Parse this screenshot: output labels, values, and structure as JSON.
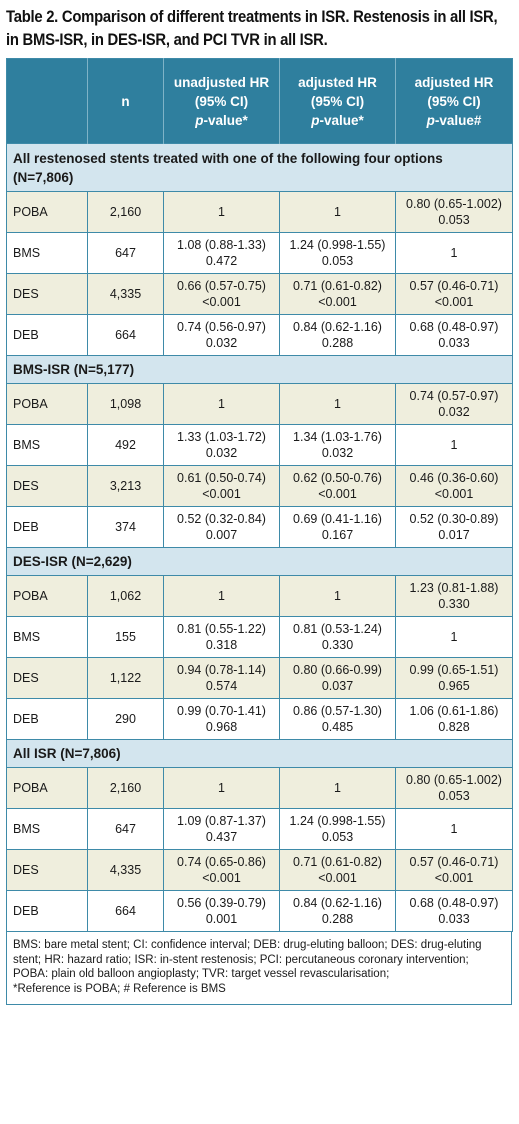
{
  "caption": "Table 2. Comparison of different treatments in ISR. Restenosis in all ISR, in BMS-ISR, in DES-ISR, and PCI TVR in all ISR.",
  "header": {
    "col0": "",
    "col1": "n",
    "col2": {
      "line1": "unadjusted HR",
      "line2": "(95% CI)",
      "pv": "p",
      "rest": "-value*"
    },
    "col3": {
      "line1": "adjusted HR",
      "line2": "(95% CI)",
      "pv": "p",
      "rest": "-value*"
    },
    "col4": {
      "line1": "adjusted HR",
      "line2": "(95% CI)",
      "pv": "p",
      "rest": "-value#"
    }
  },
  "sections": [
    {
      "title": "All restenosed stents treated with one of the following four options (N=7,806)",
      "rows": [
        {
          "label": "POBA",
          "n": "2,160",
          "c2a": "1",
          "c2b": "",
          "c3a": "1",
          "c3b": "",
          "c4a": "0.80 (0.65-1.002)",
          "c4b": "0.053"
        },
        {
          "label": "BMS",
          "n": "647",
          "c2a": "1.08 (0.88-1.33)",
          "c2b": "0.472",
          "c3a": "1.24 (0.998-1.55)",
          "c3b": "0.053",
          "c4a": "1",
          "c4b": ""
        },
        {
          "label": "DES",
          "n": "4,335",
          "c2a": "0.66 (0.57-0.75)",
          "c2b": "<0.001",
          "c3a": "0.71 (0.61-0.82)",
          "c3b": "<0.001",
          "c4a": "0.57 (0.46-0.71)",
          "c4b": "<0.001"
        },
        {
          "label": "DEB",
          "n": "664",
          "c2a": "0.74 (0.56-0.97)",
          "c2b": "0.032",
          "c3a": "0.84 (0.62-1.16)",
          "c3b": "0.288",
          "c4a": "0.68 (0.48-0.97)",
          "c4b": "0.033"
        }
      ]
    },
    {
      "title": "BMS-ISR (N=5,177)",
      "rows": [
        {
          "label": "POBA",
          "n": "1,098",
          "c2a": "1",
          "c2b": "",
          "c3a": "1",
          "c3b": "",
          "c4a": "0.74 (0.57-0.97)",
          "c4b": "0.032"
        },
        {
          "label": "BMS",
          "n": "492",
          "c2a": "1.33 (1.03-1.72)",
          "c2b": "0.032",
          "c3a": "1.34 (1.03-1.76)",
          "c3b": "0.032",
          "c4a": "1",
          "c4b": ""
        },
        {
          "label": "DES",
          "n": "3,213",
          "c2a": "0.61 (0.50-0.74)",
          "c2b": "<0.001",
          "c3a": "0.62 (0.50-0.76)",
          "c3b": "<0.001",
          "c4a": "0.46 (0.36-0.60)",
          "c4b": "<0.001"
        },
        {
          "label": "DEB",
          "n": "374",
          "c2a": "0.52 (0.32-0.84)",
          "c2b": "0.007",
          "c3a": "0.69 (0.41-1.16)",
          "c3b": "0.167",
          "c4a": "0.52 (0.30-0.89)",
          "c4b": "0.017"
        }
      ]
    },
    {
      "title": "DES-ISR (N=2,629)",
      "rows": [
        {
          "label": "POBA",
          "n": "1,062",
          "c2a": "1",
          "c2b": "",
          "c3a": "1",
          "c3b": "",
          "c4a": "1.23 (0.81-1.88)",
          "c4b": "0.330"
        },
        {
          "label": "BMS",
          "n": "155",
          "c2a": "0.81 (0.55-1.22)",
          "c2b": "0.318",
          "c3a": "0.81 (0.53-1.24)",
          "c3b": "0.330",
          "c4a": "1",
          "c4b": ""
        },
        {
          "label": "DES",
          "n": "1,122",
          "c2a": "0.94 (0.78-1.14)",
          "c2b": "0.574",
          "c3a": "0.80 (0.66-0.99)",
          "c3b": "0.037",
          "c4a": "0.99 (0.65-1.51)",
          "c4b": "0.965"
        },
        {
          "label": "DEB",
          "n": "290",
          "c2a": "0.99 (0.70-1.41)",
          "c2b": "0.968",
          "c3a": "0.86 (0.57-1.30)",
          "c3b": "0.485",
          "c4a": "1.06 (0.61-1.86)",
          "c4b": "0.828"
        }
      ]
    },
    {
      "title": "All ISR (N=7,806)",
      "rows": [
        {
          "label": "POBA",
          "n": "2,160",
          "c2a": "1",
          "c2b": "",
          "c3a": "1",
          "c3b": "",
          "c4a": "0.80 (0.65-1.002)",
          "c4b": "0.053"
        },
        {
          "label": "BMS",
          "n": "647",
          "c2a": "1.09 (0.87-1.37)",
          "c2b": "0.437",
          "c3a": "1.24 (0.998-1.55)",
          "c3b": "0.053",
          "c4a": "1",
          "c4b": ""
        },
        {
          "label": "DES",
          "n": "4,335",
          "c2a": "0.74 (0.65-0.86)",
          "c2b": "<0.001",
          "c3a": "0.71 (0.61-0.82)",
          "c3b": "<0.001",
          "c4a": "0.57 (0.46-0.71)",
          "c4b": "<0.001"
        },
        {
          "label": "DEB",
          "n": "664",
          "c2a": "0.56 (0.39-0.79)",
          "c2b": "0.001",
          "c3a": "0.84 (0.62-1.16)",
          "c3b": "0.288",
          "c4a": "0.68 (0.48-0.97)",
          "c4b": "0.033"
        }
      ]
    }
  ],
  "footnote": {
    "line1": "BMS: bare metal stent; CI: confidence interval; DEB: drug-eluting balloon; DES: drug-eluting stent; HR: hazard ratio; ISR: in-stent restenosis; PCI: percutaneous coronary intervention; POBA: plain old balloon angioplasty; TVR: target vessel revascularisation;",
    "line2": "*Reference is POBA; # Reference is BMS"
  }
}
